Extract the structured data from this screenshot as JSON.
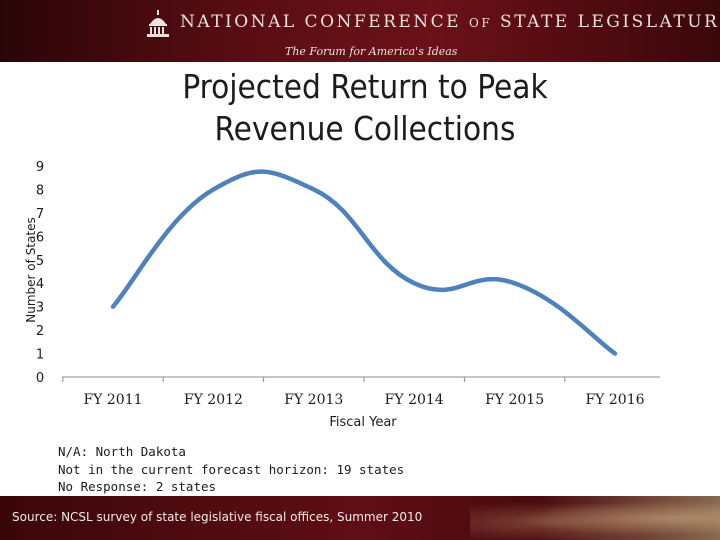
{
  "header": {
    "organization": "NATIONAL CONFERENCE of STATE LEGISLATURES",
    "tagline": "The Forum for America's Ideas",
    "logo_icon": "capitol-dome-icon"
  },
  "chart_data": {
    "type": "line",
    "title_line1": "Projected Return to Peak",
    "title_line2": "Revenue Collections",
    "xlabel": "Fiscal Year",
    "ylabel": "Number of States",
    "categories": [
      "FY 2011",
      "FY 2012",
      "FY 2013",
      "FY 2014",
      "FY 2015",
      "FY 2016"
    ],
    "series": [
      {
        "values": [
          3,
          8,
          8,
          4,
          4,
          1
        ],
        "color": "#4f81bd",
        "smooth": true
      }
    ],
    "y_ticks": [
      "0",
      "1",
      "2",
      "3",
      "4",
      "5",
      "6",
      "7",
      "8",
      "9"
    ],
    "ylim": [
      0,
      9
    ],
    "grid": false
  },
  "notes": [
    "N/A: North Dakota",
    "Not in the current forecast horizon: 19 states",
    "No Response: 2 states"
  ],
  "footer": {
    "source": "Source: NCSL survey of state legislative fiscal offices, Summer 2010"
  }
}
